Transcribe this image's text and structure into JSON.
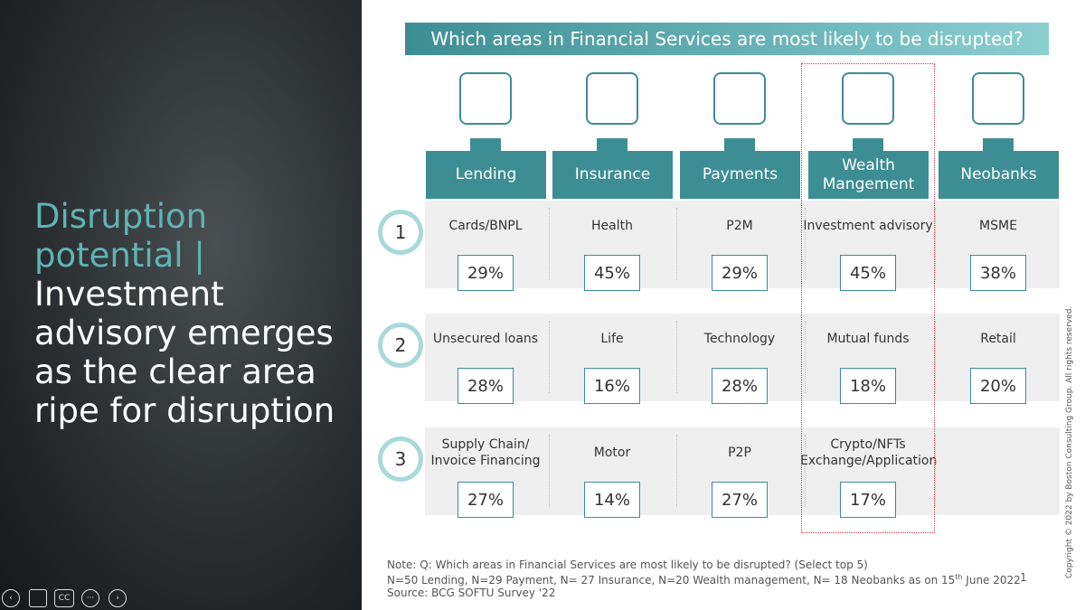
{
  "sidebar": {
    "title_accent": "Disruption potential |",
    "title_main": "Investment advisory emerges as the clear area ripe for disruption"
  },
  "controls": {
    "captions": "CC"
  },
  "banner": "Which areas in Financial Services are most likely to be disrupted?",
  "ranks": [
    "1",
    "2",
    "3"
  ],
  "columns": [
    {
      "header": "Lending",
      "cells": [
        {
          "label": "Cards/BNPL",
          "value": "29%"
        },
        {
          "label": "Unsecured loans",
          "value": "28%"
        },
        {
          "label": "Supply Chain/ Invoice Financing",
          "value": "27%"
        }
      ]
    },
    {
      "header": "Insurance",
      "cells": [
        {
          "label": "Health",
          "value": "45%"
        },
        {
          "label": "Life",
          "value": "16%"
        },
        {
          "label": "Motor",
          "value": "14%"
        }
      ]
    },
    {
      "header": "Payments",
      "cells": [
        {
          "label": "P2M",
          "value": "29%"
        },
        {
          "label": "Technology",
          "value": "28%"
        },
        {
          "label": "P2P",
          "value": "27%"
        }
      ]
    },
    {
      "header": "Wealth Mangement",
      "cells": [
        {
          "label": "Investment advisory",
          "value": "45%"
        },
        {
          "label": "Mutual funds",
          "value": "18%"
        },
        {
          "label": "Crypto/NFTs Exchange/Application",
          "value": "17%"
        }
      ]
    },
    {
      "header": "Neobanks",
      "cells": [
        {
          "label": "MSME",
          "value": "38%"
        },
        {
          "label": "Retail",
          "value": "20%"
        }
      ]
    }
  ],
  "notes": {
    "question": "Note: Q: Which areas in Financial Services are most likely to be disrupted? (Select top 5)",
    "sample_before": "N=50 Lending, N=29 Payment, N= 27 Insurance, N=20 Wealth management, N= 18 Neobanks as on 15",
    "sample_sup": "th",
    "sample_after": " June 2022",
    "source": "Source: BCG SOFTU Survey '22",
    "page": "1"
  },
  "copyright": "Copyright © 2022 by Boston Consulting Group. All rights reserved."
}
